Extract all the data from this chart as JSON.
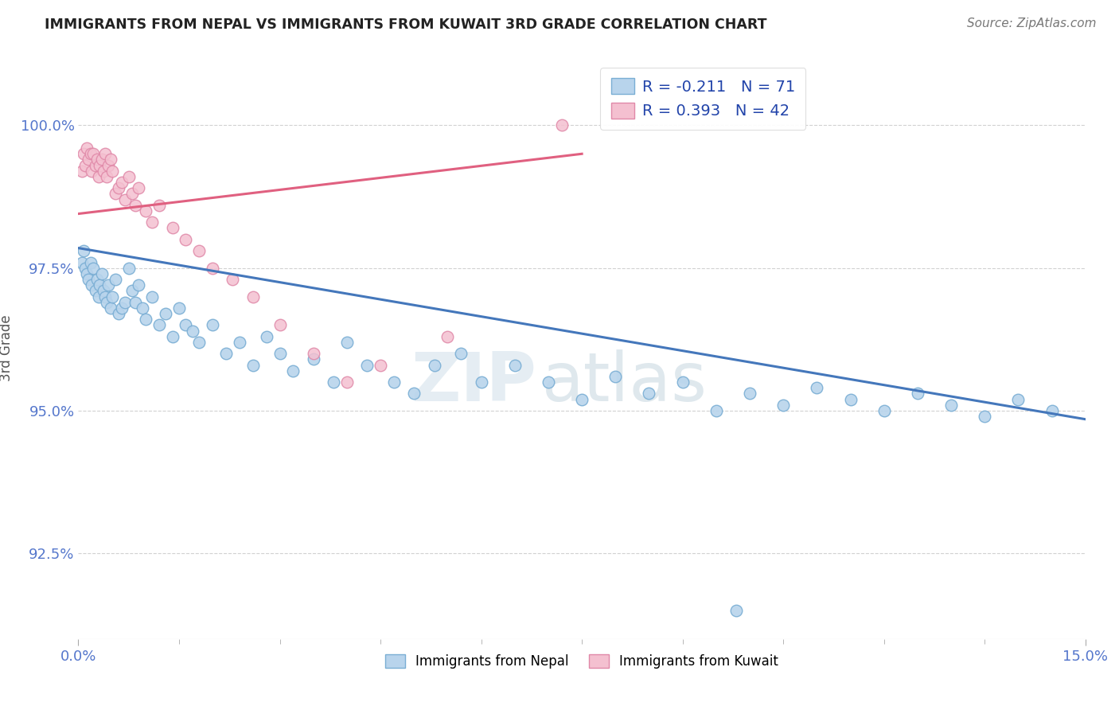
{
  "title": "IMMIGRANTS FROM NEPAL VS IMMIGRANTS FROM KUWAIT 3RD GRADE CORRELATION CHART",
  "source": "Source: ZipAtlas.com",
  "ylabel": "3rd Grade",
  "xlim": [
    0.0,
    15.0
  ],
  "ylim": [
    91.0,
    101.2
  ],
  "yticks": [
    92.5,
    95.0,
    97.5,
    100.0
  ],
  "ytick_labels": [
    "92.5%",
    "95.0%",
    "97.5%",
    "100.0%"
  ],
  "nepal_color": "#b8d4ec",
  "nepal_edge": "#7aaed4",
  "kuwait_color": "#f4c0d0",
  "kuwait_edge": "#e088a8",
  "nepal_line_color": "#4477bb",
  "kuwait_line_color": "#e06080",
  "nepal_R": -0.211,
  "nepal_N": 71,
  "kuwait_R": 0.393,
  "kuwait_N": 42,
  "nepal_x": [
    0.05,
    0.08,
    0.1,
    0.12,
    0.15,
    0.18,
    0.2,
    0.22,
    0.25,
    0.28,
    0.3,
    0.32,
    0.35,
    0.38,
    0.4,
    0.42,
    0.45,
    0.48,
    0.5,
    0.55,
    0.6,
    0.65,
    0.7,
    0.75,
    0.8,
    0.85,
    0.9,
    0.95,
    1.0,
    1.1,
    1.2,
    1.3,
    1.4,
    1.5,
    1.6,
    1.7,
    1.8,
    2.0,
    2.2,
    2.4,
    2.6,
    2.8,
    3.0,
    3.2,
    3.5,
    3.8,
    4.0,
    4.3,
    4.7,
    5.0,
    5.3,
    5.7,
    6.0,
    6.5,
    7.0,
    7.5,
    8.0,
    8.5,
    9.0,
    9.5,
    10.0,
    10.5,
    11.0,
    11.5,
    12.0,
    12.5,
    13.0,
    13.5,
    14.0,
    14.5,
    9.8
  ],
  "nepal_y": [
    97.6,
    97.8,
    97.5,
    97.4,
    97.3,
    97.6,
    97.2,
    97.5,
    97.1,
    97.3,
    97.0,
    97.2,
    97.4,
    97.1,
    97.0,
    96.9,
    97.2,
    96.8,
    97.0,
    97.3,
    96.7,
    96.8,
    96.9,
    97.5,
    97.1,
    96.9,
    97.2,
    96.8,
    96.6,
    97.0,
    96.5,
    96.7,
    96.3,
    96.8,
    96.5,
    96.4,
    96.2,
    96.5,
    96.0,
    96.2,
    95.8,
    96.3,
    96.0,
    95.7,
    95.9,
    95.5,
    96.2,
    95.8,
    95.5,
    95.3,
    95.8,
    96.0,
    95.5,
    95.8,
    95.5,
    95.2,
    95.6,
    95.3,
    95.5,
    95.0,
    95.3,
    95.1,
    95.4,
    95.2,
    95.0,
    95.3,
    95.1,
    94.9,
    95.2,
    95.0,
    91.5
  ],
  "kuwait_x": [
    0.05,
    0.08,
    0.1,
    0.12,
    0.15,
    0.18,
    0.2,
    0.22,
    0.25,
    0.28,
    0.3,
    0.32,
    0.35,
    0.38,
    0.4,
    0.42,
    0.45,
    0.48,
    0.5,
    0.55,
    0.6,
    0.65,
    0.7,
    0.75,
    0.8,
    0.85,
    0.9,
    1.0,
    1.1,
    1.2,
    1.4,
    1.6,
    1.8,
    2.0,
    2.3,
    2.6,
    3.0,
    3.5,
    4.0,
    4.5,
    5.5,
    7.2
  ],
  "kuwait_y": [
    99.2,
    99.5,
    99.3,
    99.6,
    99.4,
    99.5,
    99.2,
    99.5,
    99.3,
    99.4,
    99.1,
    99.3,
    99.4,
    99.2,
    99.5,
    99.1,
    99.3,
    99.4,
    99.2,
    98.8,
    98.9,
    99.0,
    98.7,
    99.1,
    98.8,
    98.6,
    98.9,
    98.5,
    98.3,
    98.6,
    98.2,
    98.0,
    97.8,
    97.5,
    97.3,
    97.0,
    96.5,
    96.0,
    95.5,
    95.8,
    96.3,
    100.0
  ],
  "nepal_trendline_x": [
    0.0,
    15.0
  ],
  "nepal_trendline_y": [
    97.85,
    94.85
  ],
  "kuwait_trendline_x": [
    0.0,
    7.5
  ],
  "kuwait_trendline_y": [
    98.45,
    99.5
  ],
  "watermark_zip": "ZIP",
  "watermark_atlas": "atlas",
  "background_color": "#ffffff",
  "grid_color": "#cccccc",
  "tick_color": "#5577cc"
}
